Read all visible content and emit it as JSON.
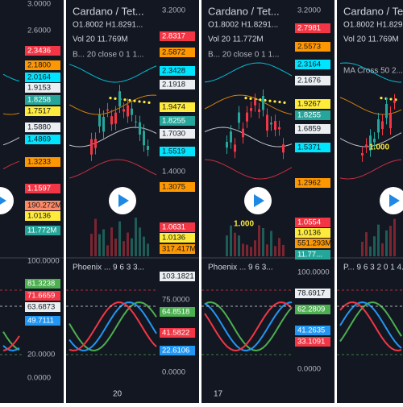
{
  "panels": [
    {
      "price_axis": [
        "3.0000",
        "2.6000",
        "2.3436",
        "2.1800",
        "2.0164",
        "1.9153",
        "1.8258",
        "1.7517",
        "1.5880",
        "1.4869",
        "1.3233",
        "1.1597",
        "190.272M",
        "1.0136",
        "11.772M"
      ],
      "oscillator_axis": [
        "100.0000",
        "81.3238",
        "71.6659",
        "63.6873",
        "49.7111",
        "20.0000",
        "0.0000"
      ]
    },
    {
      "title": "Cardano / Tet...",
      "ohlc": "O1.8002  H1.8291...",
      "volume": "Vol 20  11.769M",
      "indicator": "B... 20 close 0 1 1...",
      "price_axis": [
        "3.2000",
        "2.8317",
        "2.5872",
        "2.3428",
        "2.1918",
        "1.9474",
        "1.8255",
        "1.7030",
        "1.5519",
        "1.4000",
        "1.3075",
        "1.0631",
        "1.0136",
        "317.417M"
      ],
      "oscillator": "Phoenix ...  9 6 3 3...",
      "oscillator_axis": [
        "103.1821",
        "75.0000",
        "64.8518",
        "41.5822",
        "22.6106",
        "0.0000"
      ],
      "date_label": "20"
    },
    {
      "title": "Cardano / Tet...",
      "ohlc": "O1.8002  H1.8291...",
      "volume": "Vol 20  11.772M",
      "indicator": "B... 20 close 0 1 1...",
      "price_axis": [
        "3.2000",
        "2.7981",
        "2.5573",
        "2.3164",
        "2.1676",
        "1.9267",
        "1.8255",
        "1.6859",
        "1.5371",
        "1.2962",
        "1.0554",
        "1.0136",
        "551.293M",
        "11.77..."
      ],
      "level_label": "1.000",
      "oscillator": "Phoenix ...  9 6 3...",
      "oscillator_axis": [
        "100.0000",
        "78.6917",
        "62.2809",
        "41.2635",
        "33.1091",
        "0.0000"
      ],
      "date_label": "17"
    },
    {
      "title": "Cardano / Tet",
      "ohlc": "O1.8002  H1.829",
      "volume": "Vol 20  11.769M",
      "indicator": "MA Cross 50 2...",
      "level_label": "1.000",
      "oscillator": "P...  9 6 3 2 0 1 4..."
    }
  ]
}
